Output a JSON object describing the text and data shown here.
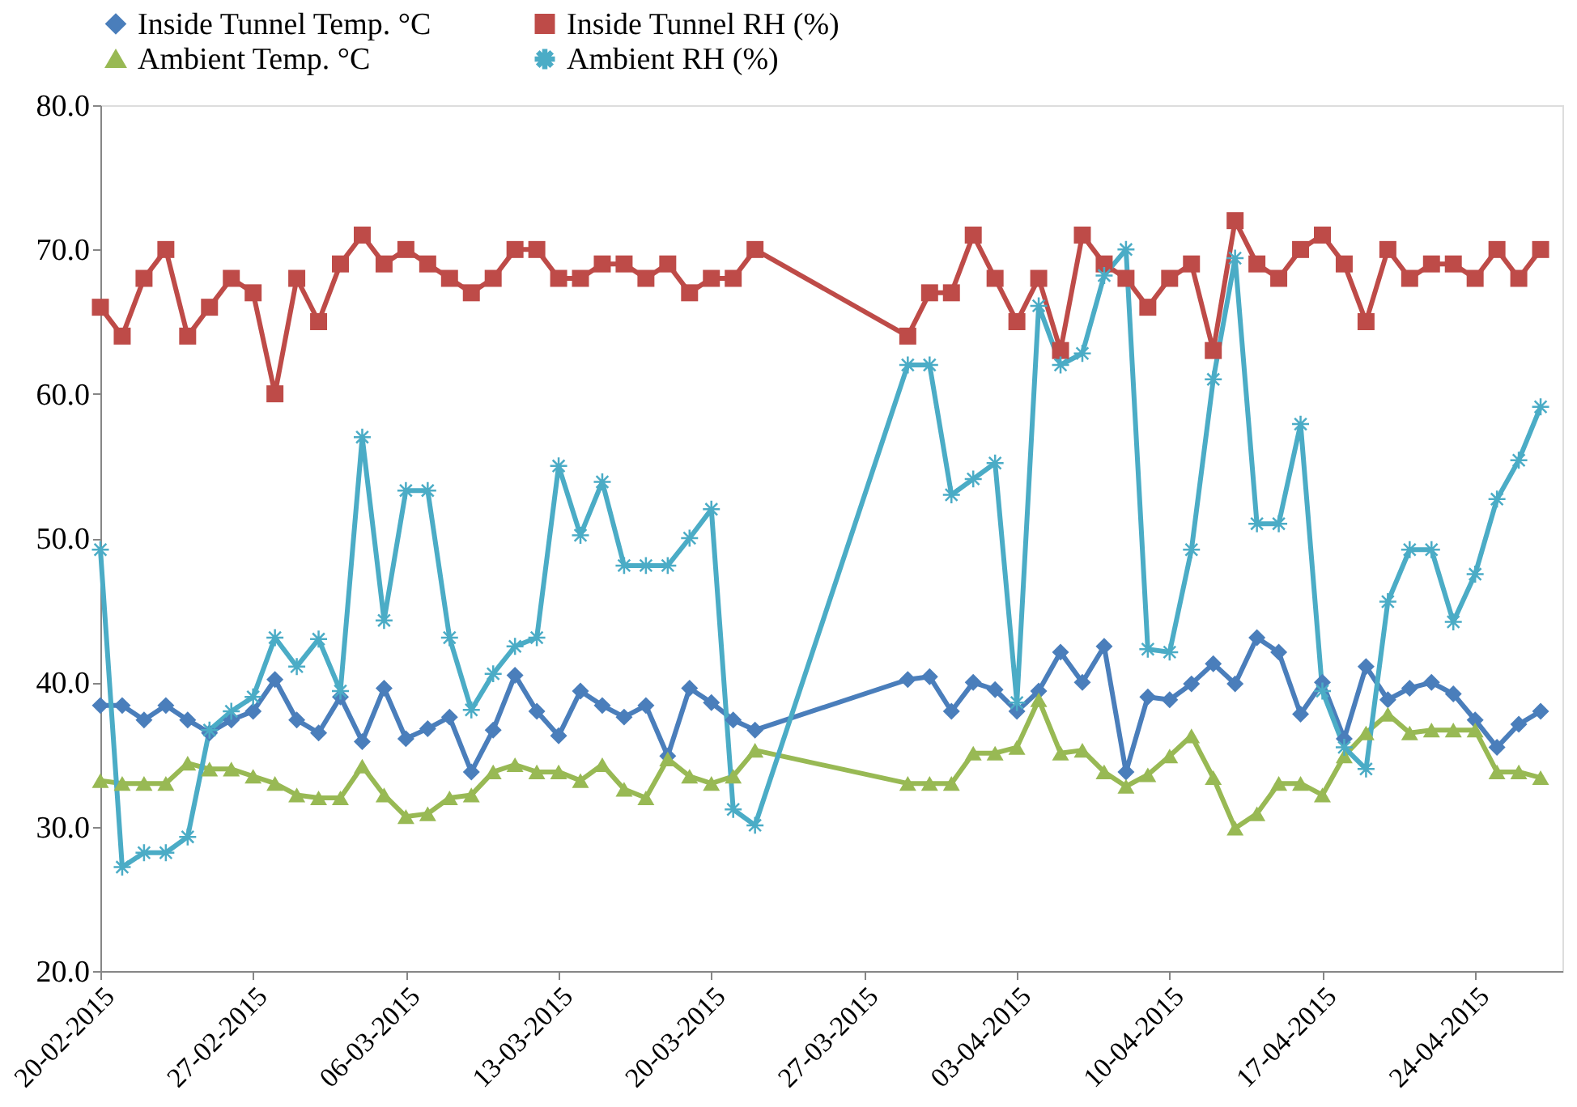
{
  "chart_data": {
    "type": "line",
    "x": [
      "2015-02-20",
      "2015-02-21",
      "2015-02-22",
      "2015-02-23",
      "2015-02-24",
      "2015-02-25",
      "2015-02-26",
      "2015-02-27",
      "2015-02-28",
      "2015-03-01",
      "2015-03-02",
      "2015-03-03",
      "2015-03-04",
      "2015-03-05",
      "2015-03-06",
      "2015-03-07",
      "2015-03-08",
      "2015-03-09",
      "2015-03-10",
      "2015-03-11",
      "2015-03-12",
      "2015-03-13",
      "2015-03-14",
      "2015-03-15",
      "2015-03-16",
      "2015-03-17",
      "2015-03-18",
      "2015-03-19",
      "2015-03-20",
      "2015-03-21",
      "2015-03-22",
      "2015-03-29",
      "2015-03-30",
      "2015-03-31",
      "2015-04-01",
      "2015-04-02",
      "2015-04-03",
      "2015-04-04",
      "2015-04-05",
      "2015-04-06",
      "2015-04-07",
      "2015-04-08",
      "2015-04-09",
      "2015-04-10",
      "2015-04-11",
      "2015-04-12",
      "2015-04-13",
      "2015-04-14",
      "2015-04-15",
      "2015-04-16",
      "2015-04-17",
      "2015-04-18",
      "2015-04-19",
      "2015-04-20",
      "2015-04-21",
      "2015-04-22",
      "2015-04-23",
      "2015-04-24",
      "2015-04-25",
      "2015-04-26",
      "2015-04-27"
    ],
    "series": [
      {
        "name": "Inside Tunnel Temp. °C",
        "color": "#4a7ebb",
        "marker": "diamond",
        "values": [
          38.4,
          38.4,
          37.4,
          38.4,
          37.4,
          36.5,
          37.4,
          38,
          40.2,
          37.4,
          36.5,
          39,
          35.9,
          39.6,
          36.1,
          36.8,
          37.6,
          33.8,
          36.7,
          40.5,
          38,
          36.3,
          39.4,
          38.4,
          37.6,
          38.4,
          34.9,
          39.6,
          38.6,
          37.4,
          36.7,
          40.2,
          40.4,
          38,
          40,
          39.5,
          38,
          39.4,
          42.1,
          40,
          42.5,
          33.8,
          39,
          38.8,
          39.9,
          41.3,
          39.9,
          43.1,
          42.1,
          37.8,
          40,
          36.1,
          41.1,
          38.8,
          39.6,
          40,
          39.2,
          37.4,
          35.5,
          37.1,
          38
        ]
      },
      {
        "name": "Inside Tunnel RH (%)",
        "color": "#be4b48",
        "marker": "square",
        "values": [
          66,
          64,
          68,
          70,
          64,
          66,
          68,
          67,
          60,
          68,
          65,
          69,
          71,
          69,
          70,
          69,
          68,
          67,
          68,
          70,
          70,
          68,
          68,
          69,
          69,
          68,
          69,
          67,
          68,
          68,
          70,
          64,
          67,
          67,
          71,
          68,
          65,
          68,
          63,
          71,
          69,
          68,
          66,
          68,
          69,
          63,
          72,
          69,
          68,
          70,
          71,
          69,
          65,
          70,
          68,
          69,
          69,
          68,
          70,
          68,
          70
        ]
      },
      {
        "name": "Ambient Temp. °C",
        "color": "#98b954",
        "marker": "triangle",
        "values": [
          33.2,
          33,
          33,
          33,
          34.4,
          34,
          34,
          33.5,
          33,
          32.2,
          32,
          32,
          34.2,
          32.2,
          30.7,
          30.9,
          32,
          32.2,
          33.8,
          34.3,
          33.8,
          33.8,
          33.2,
          34.3,
          32.6,
          32,
          34.7,
          33.5,
          33,
          33.5,
          35.3,
          33,
          33,
          33,
          35.1,
          35.1,
          35.5,
          38.8,
          35.1,
          35.3,
          33.8,
          32.8,
          33.6,
          34.9,
          36.3,
          33.4,
          29.9,
          30.9,
          33,
          33,
          32.2,
          34.9,
          36.5,
          37.8,
          36.5,
          36.7,
          36.7,
          36.7,
          33.8,
          33.8,
          33.4
        ]
      },
      {
        "name": "Ambient RH (%)",
        "color": "#4bacc6",
        "marker": "cross",
        "values": [
          49.2,
          27.2,
          28.2,
          28.2,
          29.3,
          36.7,
          38,
          39,
          43.1,
          41.1,
          43,
          39.4,
          57,
          44.3,
          53.3,
          53.3,
          43.1,
          38.1,
          40.6,
          42.5,
          43.1,
          55,
          50.2,
          53.9,
          48.1,
          48.1,
          48.1,
          50,
          52,
          31.2,
          30.1,
          62,
          62,
          53,
          54.1,
          55.2,
          38.6,
          66.1,
          62,
          62.8,
          68.2,
          70,
          42.3,
          42.1,
          49.2,
          61,
          69.4,
          51,
          51,
          57.9,
          39.4,
          35.5,
          34,
          45.6,
          49.2,
          49.2,
          44.2,
          47.5,
          52.7,
          55.4,
          59.1
        ]
      }
    ],
    "xlim": [
      "2015-02-20",
      "2015-04-28"
    ],
    "xticks": [
      {
        "value": "2015-02-20",
        "label": "20-02-2015"
      },
      {
        "value": "2015-02-27",
        "label": "27-02-2015"
      },
      {
        "value": "2015-03-06",
        "label": "06-03-2015"
      },
      {
        "value": "2015-03-13",
        "label": "13-03-2015"
      },
      {
        "value": "2015-03-20",
        "label": "20-03-2015"
      },
      {
        "value": "2015-03-27",
        "label": "27-03-2015"
      },
      {
        "value": "2015-04-03",
        "label": "03-04-2015"
      },
      {
        "value": "2015-04-10",
        "label": "10-04-2015"
      },
      {
        "value": "2015-04-17",
        "label": "17-04-2015"
      },
      {
        "value": "2015-04-24",
        "label": "24-04-2015"
      }
    ],
    "ylim": [
      20,
      80
    ],
    "yticks": [
      {
        "value": 20,
        "label": "20.0"
      },
      {
        "value": 30,
        "label": "30.0"
      },
      {
        "value": 40,
        "label": "40.0"
      },
      {
        "value": 50,
        "label": "50.0"
      },
      {
        "value": 60,
        "label": "60.0"
      },
      {
        "value": 70,
        "label": "70.0"
      },
      {
        "value": 80,
        "label": "80.0"
      }
    ],
    "grid": false,
    "legend": "top",
    "line_style": "solid"
  }
}
